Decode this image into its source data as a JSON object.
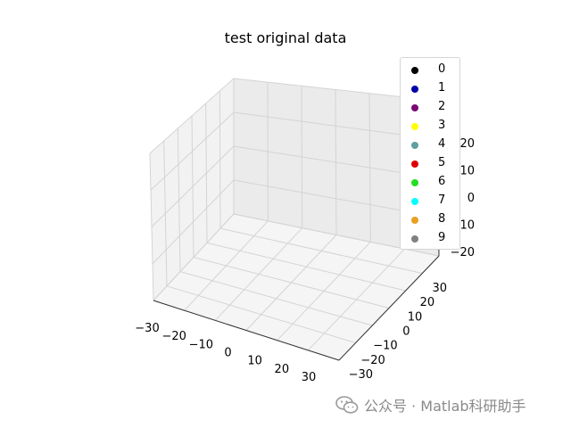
{
  "chart_data": {
    "type": "scatter",
    "dimensions": 3,
    "title": "test original data",
    "legend_position": "top-right",
    "grid": true,
    "x_ticks": [
      "−30",
      "−20",
      "−10",
      "0",
      "10",
      "20",
      "30"
    ],
    "y_ticks": [
      "−30",
      "−20",
      "−10",
      "0",
      "10",
      "20",
      "30"
    ],
    "z_ticks": [
      "−20",
      "−10",
      "0",
      "10",
      "20"
    ],
    "series": [
      {
        "name": "0",
        "color": "#000000",
        "points": []
      },
      {
        "name": "1",
        "color": "#0000aa",
        "points": []
      },
      {
        "name": "2",
        "color": "#7a0a77",
        "points": []
      },
      {
        "name": "3",
        "color": "#ffff00",
        "points": []
      },
      {
        "name": "4",
        "color": "#5f9f9f",
        "points": []
      },
      {
        "name": "5",
        "color": "#dd0000",
        "points": []
      },
      {
        "name": "6",
        "color": "#22dd22",
        "points": []
      },
      {
        "name": "7",
        "color": "#00ffff",
        "points": []
      },
      {
        "name": "8",
        "color": "#e8a020",
        "points": []
      },
      {
        "name": "9",
        "color": "#808080",
        "points": []
      }
    ]
  },
  "watermark": {
    "text": "公众号 · Matlab科研助手",
    "icon": "wechat-icon"
  }
}
